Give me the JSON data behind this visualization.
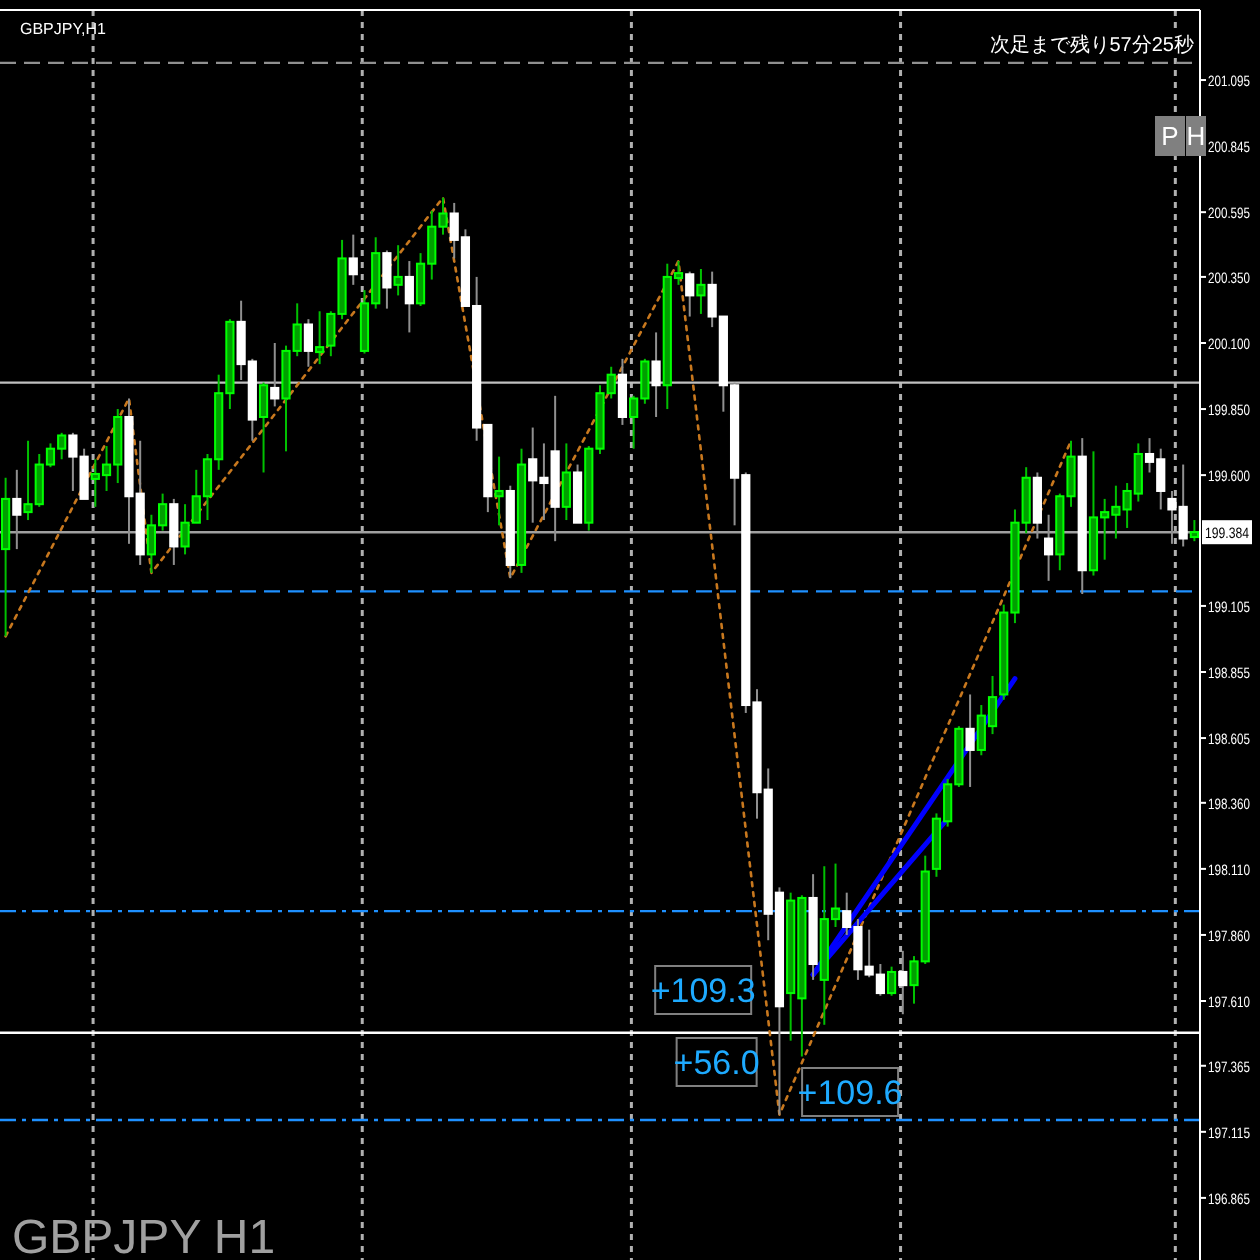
{
  "chart_data": {
    "type": "candlestick",
    "title": "GBPJPY,H1",
    "categories": [
      null,
      null,
      null,
      null,
      null,
      null,
      null,
      null,
      null,
      null,
      null,
      null,
      null,
      null,
      null,
      null,
      null,
      null,
      null,
      null,
      null,
      null,
      null,
      null,
      null,
      null,
      null,
      null,
      null,
      null,
      null,
      null,
      null,
      null,
      null,
      null,
      null,
      null,
      null,
      null,
      null,
      null,
      null,
      null,
      null,
      null,
      null,
      null,
      null,
      null,
      null,
      null,
      null,
      null,
      null,
      null,
      null,
      null,
      null,
      null,
      null,
      null,
      null,
      null,
      null,
      null,
      null,
      null,
      null,
      null,
      null,
      null,
      null,
      null,
      null,
      null,
      null,
      null,
      null,
      null,
      null,
      null,
      null,
      null,
      null,
      null,
      null,
      null,
      null,
      null,
      null,
      null,
      null,
      null,
      null,
      null,
      null,
      null,
      null,
      null,
      null,
      null,
      null,
      null,
      null,
      null,
      null
    ],
    "ylim": [
      196.63,
      201.36
    ],
    "yticks": [
      {
        "value": 196.865,
        "label": "196.865"
      },
      {
        "value": 197.115,
        "label": "197.115"
      },
      {
        "value": 197.365,
        "label": "197.365"
      },
      {
        "value": 197.61,
        "label": "197.610"
      },
      {
        "value": 197.86,
        "label": "197.860"
      },
      {
        "value": 198.11,
        "label": "198.110"
      },
      {
        "value": 198.36,
        "label": "198.360"
      },
      {
        "value": 198.605,
        "label": "198.605"
      },
      {
        "value": 198.855,
        "label": "198.855"
      },
      {
        "value": 199.105,
        "label": "199.105"
      },
      {
        "value": 199.6,
        "label": "199.600"
      },
      {
        "value": 199.85,
        "label": "199.850"
      },
      {
        "value": 200.1,
        "label": "200.100"
      },
      {
        "value": 200.35,
        "label": "200.350"
      },
      {
        "value": 200.595,
        "label": "200.595"
      },
      {
        "value": 200.845,
        "label": "200.845"
      },
      {
        "value": 201.095,
        "label": "201.095"
      }
    ],
    "grid": "x",
    "tick_labels": "y",
    "ohlc": [
      [
        199.32,
        199.59,
        198.99,
        199.51
      ],
      [
        199.51,
        199.62,
        199.32,
        199.45
      ],
      [
        199.46,
        199.73,
        199.43,
        199.49
      ],
      [
        199.49,
        199.68,
        199.48,
        199.64
      ],
      [
        199.64,
        199.72,
        199.63,
        199.7
      ],
      [
        199.7,
        199.76,
        199.66,
        199.75
      ],
      [
        199.75,
        199.76,
        199.54,
        199.67
      ],
      [
        199.67,
        199.7,
        199.51,
        199.51
      ],
      [
        199.59,
        199.66,
        199.48,
        199.6
      ],
      [
        199.6,
        199.71,
        199.54,
        199.64
      ],
      [
        199.64,
        199.85,
        199.57,
        199.82
      ],
      [
        199.82,
        199.89,
        199.34,
        199.52
      ],
      [
        199.53,
        199.73,
        199.26,
        199.3
      ],
      [
        199.3,
        199.45,
        199.23,
        199.41
      ],
      [
        199.41,
        199.53,
        199.39,
        199.49
      ],
      [
        199.49,
        199.51,
        199.26,
        199.33
      ],
      [
        199.33,
        199.49,
        199.3,
        199.42
      ],
      [
        199.42,
        199.62,
        199.42,
        199.52
      ],
      [
        199.52,
        199.68,
        199.43,
        199.66
      ],
      [
        199.66,
        199.98,
        199.62,
        199.91
      ],
      [
        199.91,
        200.19,
        199.85,
        200.18
      ],
      [
        200.18,
        200.26,
        199.96,
        200.02
      ],
      [
        200.03,
        200.04,
        199.73,
        199.81
      ],
      [
        199.82,
        199.95,
        199.61,
        199.94
      ],
      [
        199.93,
        200.1,
        199.86,
        199.89
      ],
      [
        199.89,
        200.09,
        199.69,
        200.07
      ],
      [
        200.07,
        200.25,
        200.05,
        200.17
      ],
      [
        200.17,
        200.19,
        200.01,
        200.07
      ],
      [
        200.07,
        200.22,
        200.02,
        200.08
      ],
      [
        200.09,
        200.22,
        200.05,
        200.21
      ],
      [
        200.21,
        200.49,
        200.19,
        200.42
      ],
      [
        200.42,
        200.51,
        200.32,
        200.36
      ],
      [
        200.07,
        200.3,
        200.06,
        200.25
      ],
      [
        200.25,
        200.5,
        200.23,
        200.44
      ],
      [
        200.44,
        200.45,
        200.23,
        200.31
      ],
      [
        200.32,
        200.47,
        200.28,
        200.35
      ],
      [
        200.35,
        200.41,
        200.14,
        200.25
      ],
      [
        200.25,
        200.44,
        200.24,
        200.4
      ],
      [
        200.4,
        200.6,
        200.34,
        200.54
      ],
      [
        200.54,
        200.65,
        200.51,
        200.59
      ],
      [
        200.59,
        200.63,
        200.42,
        200.49
      ],
      [
        200.5,
        200.53,
        200.24,
        200.24
      ],
      [
        200.24,
        200.35,
        199.73,
        199.78
      ],
      [
        199.79,
        199.79,
        199.46,
        199.52
      ],
      [
        199.52,
        199.67,
        199.41,
        199.54
      ],
      [
        199.54,
        199.56,
        199.21,
        199.26
      ],
      [
        199.26,
        199.7,
        199.23,
        199.64
      ],
      [
        199.66,
        199.78,
        199.42,
        199.58
      ],
      [
        199.59,
        199.72,
        199.43,
        199.57
      ],
      [
        199.69,
        199.9,
        199.35,
        199.48
      ],
      [
        199.48,
        199.72,
        199.43,
        199.61
      ],
      [
        199.61,
        199.64,
        199.42,
        199.42
      ],
      [
        199.42,
        199.71,
        199.39,
        199.7
      ],
      [
        199.7,
        199.94,
        199.68,
        199.91
      ],
      [
        199.91,
        200.01,
        199.89,
        199.98
      ],
      [
        199.98,
        200.04,
        199.79,
        199.82
      ],
      [
        199.82,
        199.9,
        199.7,
        199.89
      ],
      [
        199.89,
        200.04,
        199.87,
        200.03
      ],
      [
        200.03,
        200.14,
        199.82,
        199.94
      ],
      [
        199.94,
        200.4,
        199.85,
        200.35
      ],
      [
        200.35,
        200.41,
        200.32,
        200.36
      ],
      [
        200.36,
        200.37,
        200.2,
        200.28
      ],
      [
        200.28,
        200.38,
        200.21,
        200.32
      ],
      [
        200.32,
        200.37,
        200.16,
        200.2
      ],
      [
        200.2,
        200.2,
        199.84,
        199.94
      ],
      [
        199.94,
        199.95,
        199.41,
        199.59
      ],
      [
        199.6,
        199.61,
        198.7,
        198.73
      ],
      [
        198.74,
        198.79,
        198.3,
        198.4
      ],
      [
        198.41,
        198.49,
        197.84,
        197.94
      ],
      [
        198.02,
        198.04,
        197.18,
        197.59
      ],
      [
        197.64,
        198.02,
        197.46,
        197.99
      ],
      [
        197.62,
        198.01,
        197.4,
        198.0
      ],
      [
        198.0,
        198.09,
        197.69,
        197.75
      ],
      [
        197.69,
        198.12,
        197.52,
        197.92
      ],
      [
        197.92,
        198.13,
        197.89,
        197.96
      ],
      [
        197.95,
        198.02,
        197.86,
        197.89
      ],
      [
        197.89,
        197.92,
        197.69,
        197.73
      ],
      [
        197.74,
        197.88,
        197.7,
        197.71
      ],
      [
        197.71,
        197.75,
        197.63,
        197.64
      ],
      [
        197.64,
        197.74,
        197.63,
        197.72
      ],
      [
        197.72,
        197.8,
        197.56,
        197.67
      ],
      [
        197.67,
        197.78,
        197.6,
        197.76
      ],
      [
        197.76,
        198.16,
        197.75,
        198.1
      ],
      [
        198.11,
        198.32,
        198.08,
        198.3
      ],
      [
        198.29,
        198.45,
        198.27,
        198.43
      ],
      [
        198.43,
        198.65,
        198.42,
        198.64
      ],
      [
        198.64,
        198.77,
        198.42,
        198.56
      ],
      [
        198.56,
        198.73,
        198.54,
        198.69
      ],
      [
        198.65,
        198.84,
        198.62,
        198.76
      ],
      [
        198.77,
        199.11,
        198.75,
        199.08
      ],
      [
        199.08,
        199.47,
        199.04,
        199.42
      ],
      [
        199.42,
        199.63,
        199.38,
        199.59
      ],
      [
        199.59,
        199.61,
        199.36,
        199.42
      ],
      [
        199.36,
        199.45,
        199.2,
        199.3
      ],
      [
        199.3,
        199.53,
        199.24,
        199.52
      ],
      [
        199.52,
        199.73,
        199.48,
        199.67
      ],
      [
        199.67,
        199.74,
        199.15,
        199.24
      ],
      [
        199.24,
        199.69,
        199.22,
        199.44
      ],
      [
        199.44,
        199.51,
        199.28,
        199.46
      ],
      [
        199.45,
        199.56,
        199.36,
        199.48
      ],
      [
        199.47,
        199.57,
        199.4,
        199.54
      ],
      [
        199.53,
        199.72,
        199.5,
        199.68
      ],
      [
        199.68,
        199.74,
        199.61,
        199.65
      ],
      [
        199.66,
        199.7,
        199.47,
        199.54
      ],
      [
        199.51,
        199.54,
        199.34,
        199.47
      ],
      [
        199.48,
        199.64,
        199.33,
        199.36
      ],
      [
        199.37,
        199.43,
        199.35,
        199.38
      ]
    ],
    "series": [
      {
        "type": "line",
        "color": "#c8781e",
        "line_style": "dotted",
        "values": [
          198.99,
          null,
          null,
          null,
          null,
          null,
          null,
          null,
          null,
          null,
          null,
          199.89,
          null,
          199.23,
          null,
          null,
          null,
          null,
          null,
          null,
          null,
          null,
          null,
          null,
          null,
          null,
          null,
          null,
          null,
          null,
          null,
          null,
          null,
          null,
          null,
          null,
          null,
          null,
          null,
          200.65,
          null,
          null,
          null,
          null,
          null,
          199.21,
          null,
          null,
          null,
          null,
          null,
          null,
          null,
          null,
          null,
          null,
          null,
          null,
          null,
          null,
          200.41,
          null,
          null,
          null,
          null,
          null,
          null,
          null,
          null,
          197.18,
          null,
          null,
          null,
          null,
          null,
          null,
          null,
          null,
          null,
          null,
          null,
          null,
          null,
          null,
          null,
          null,
          null,
          null,
          null,
          null,
          null,
          null,
          null,
          null,
          null,
          199.73,
          null,
          null,
          null,
          null,
          null,
          null,
          null,
          null,
          null,
          null,
          null
        ]
      },
      {
        "type": "line",
        "color": "#0000ff",
        "line_style": "solid",
        "values": [
          null,
          null,
          null,
          null,
          null,
          null,
          null,
          null,
          null,
          null,
          null,
          null,
          null,
          null,
          null,
          null,
          null,
          null,
          null,
          null,
          null,
          null,
          null,
          null,
          null,
          null,
          null,
          null,
          null,
          null,
          null,
          null,
          null,
          null,
          null,
          null,
          null,
          null,
          null,
          null,
          null,
          null,
          null,
          null,
          null,
          null,
          null,
          null,
          null,
          null,
          null,
          null,
          null,
          null,
          null,
          null,
          null,
          null,
          null,
          null,
          null,
          null,
          null,
          null,
          null,
          null,
          null,
          null,
          null,
          null,
          null,
          null,
          197.71,
          null,
          null,
          null,
          null,
          null,
          null,
          null,
          null,
          null,
          null,
          null,
          null,
          null,
          null,
          null,
          null,
          null,
          198.83,
          null,
          null,
          null,
          null,
          null,
          null,
          null,
          null,
          null,
          null,
          null,
          null,
          null,
          null,
          null,
          null
        ]
      },
      {
        "type": "line",
        "color": "#0000ff",
        "line_style": "solid",
        "values": [
          null,
          null,
          null,
          null,
          null,
          null,
          null,
          null,
          null,
          null,
          null,
          null,
          null,
          null,
          null,
          null,
          null,
          null,
          null,
          null,
          null,
          null,
          null,
          null,
          null,
          null,
          null,
          null,
          null,
          null,
          null,
          null,
          null,
          null,
          null,
          null,
          null,
          null,
          null,
          null,
          null,
          null,
          null,
          null,
          null,
          null,
          null,
          null,
          null,
          null,
          null,
          null,
          null,
          null,
          null,
          null,
          null,
          null,
          null,
          null,
          null,
          null,
          null,
          null,
          null,
          null,
          null,
          null,
          null,
          null,
          null,
          null,
          197.71,
          null,
          null,
          null,
          null,
          null,
          null,
          null,
          null,
          null,
          null,
          null,
          198.3,
          null,
          null,
          null,
          null,
          null,
          null,
          null,
          null,
          null,
          null,
          null,
          null,
          null,
          null,
          null,
          null,
          null,
          null,
          null,
          null,
          null,
          null
        ]
      }
    ],
    "ref_lines": [
      {
        "axis": "y",
        "value": 201.16,
        "color": "#909090",
        "line_style": "dashed"
      },
      {
        "axis": "y",
        "value": 199.95,
        "color": "#c0c0c0",
        "line_style": "solid"
      },
      {
        "axis": "y",
        "value": 199.384,
        "label": "199.384",
        "color": "#a0a0a0",
        "line_style": "solid"
      },
      {
        "axis": "y",
        "value": 199.16,
        "color": "#1e90ff",
        "line_style": "dashed"
      },
      {
        "axis": "y",
        "value": 197.95,
        "color": "#1e90ff",
        "line_style": "dashdot"
      },
      {
        "axis": "y",
        "value": 197.49,
        "color": "#ffffff",
        "line_style": "solid"
      },
      {
        "axis": "y",
        "value": 197.16,
        "color": "#1e90ff",
        "line_style": "dashdot"
      }
    ],
    "annotations": [
      "GBPJPY H1",
      "次足まで残り57分25秒",
      "P",
      "H",
      "+109.3",
      "+56.0",
      "+109.6"
    ]
  }
}
